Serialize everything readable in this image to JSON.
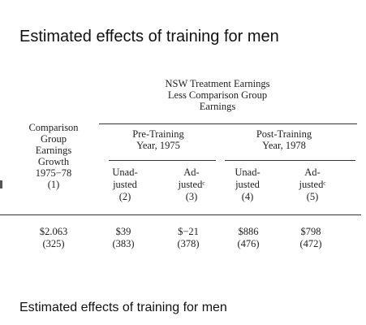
{
  "title": "Estimated effects of training for men",
  "caption": "Estimated effects of training for men",
  "table": {
    "group_header": [
      "NSW Treatment Earnings",
      "Less Comparison Group",
      "Earnings"
    ],
    "col1_header": [
      "Comparison",
      "Group",
      "Earnings",
      "Growth",
      "1975−78",
      "(1)"
    ],
    "pre_header": [
      "Pre-Training",
      "Year, 1975"
    ],
    "post_header": [
      "Post-Training",
      "Year, 1978"
    ],
    "sub_headers": [
      [
        "Unad-",
        "justed",
        "(2)"
      ],
      [
        "Ad-",
        "justedᶜ",
        "(3)"
      ],
      [
        "Unad-",
        "justed",
        "(4)"
      ],
      [
        "Ad-",
        "justedᶜ",
        "(5)"
      ]
    ],
    "values": [
      "$2.063",
      "$39",
      "$−21",
      "$886",
      "$798"
    ],
    "std_errors": [
      "(325)",
      "(383)",
      "(378)",
      "(476)",
      "(472)"
    ]
  }
}
